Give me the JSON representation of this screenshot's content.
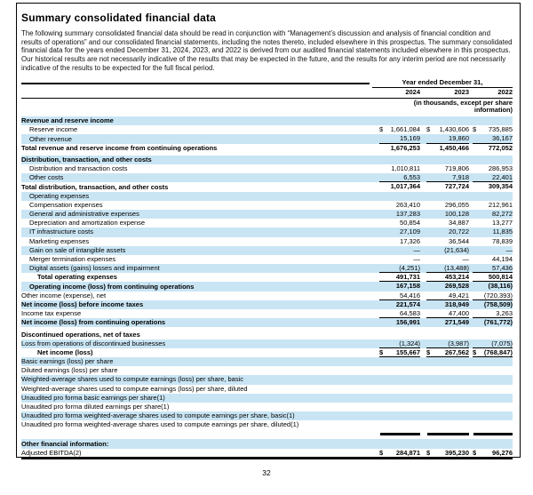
{
  "colors": {
    "row_shade": "#c9e5f4"
  },
  "page": {
    "number": "32"
  },
  "doc": {
    "title": "Summary consolidated financial data",
    "intro": "The following summary consolidated financial data should be read in conjunction with “Management’s discussion and analysis of financial condition and results of operations” and our consolidated financial statements, including the notes thereto, included elsewhere in this prospectus. The summary consolidated financial data for the years ended December 31, 2024, 2023, and 2022 is derived from our audited financial statements included elsewhere in this prospectus. Our historical results are not necessarily indicative of the results that may be expected in the future, and the results for any interim period are not necessarily indicative of the results to be expected for the full fiscal period."
  },
  "table": {
    "period_header": "Year ended December 31,",
    "years": [
      "2024",
      "2023",
      "2022"
    ],
    "units_note": "(in thousands, except per share information)",
    "rows": [
      {
        "label": "Revenue and reserve income",
        "bold": true,
        "indent": 0,
        "shaded": true,
        "values": [
          "",
          "",
          ""
        ]
      },
      {
        "label": "Reserve income",
        "indent": 1,
        "values": [
          "$1,661,084",
          "$ 1,430,606",
          "$ 735,885"
        ]
      },
      {
        "label": "Other revenue",
        "indent": 1,
        "shaded": true,
        "rule_below": true,
        "values": [
          "15,169",
          "19,860",
          "36,167"
        ]
      },
      {
        "label": "Total revenue and reserve income from continuing operations",
        "bold": true,
        "indent": 0,
        "values": [
          "1,676,253",
          "1,450,466",
          "772,052"
        ]
      },
      {
        "label": "Distribution, transaction, and other costs",
        "bold": true,
        "indent": 0,
        "shaded": true,
        "gap_before": true,
        "values": [
          "",
          "",
          ""
        ]
      },
      {
        "label": "Distribution and transaction costs",
        "indent": 1,
        "values": [
          "1,010,811",
          "719,806",
          "286,953"
        ]
      },
      {
        "label": "Other costs",
        "indent": 1,
        "shaded": true,
        "rule_below": true,
        "values": [
          "6,553",
          "7,918",
          "22,401"
        ]
      },
      {
        "label": "Total distribution, transaction, and other costs",
        "bold": true,
        "indent": 0,
        "values": [
          "1,017,364",
          "727,724",
          "309,354"
        ]
      },
      {
        "label": "Operating expenses",
        "indent": 1,
        "shaded": true,
        "values": [
          "",
          "",
          ""
        ]
      },
      {
        "label": "Compensation expenses",
        "indent": 1,
        "values": [
          "263,410",
          "296,055",
          "212,961"
        ]
      },
      {
        "label": "General and administrative expenses",
        "indent": 1,
        "shaded": true,
        "values": [
          "137,283",
          "100,128",
          "82,272"
        ]
      },
      {
        "label": "Depreciation and amortization expense",
        "indent": 1,
        "values": [
          "50,854",
          "34,887",
          "13,277"
        ]
      },
      {
        "label": "IT infrastructure costs",
        "indent": 1,
        "shaded": true,
        "values": [
          "27,109",
          "20,722",
          "11,835"
        ]
      },
      {
        "label": "Marketing expenses",
        "indent": 1,
        "values": [
          "17,326",
          "36,544",
          "78,839"
        ]
      },
      {
        "label": "Gain on sale of intangible assets",
        "indent": 1,
        "shaded": true,
        "values": [
          "—",
          "(21,634)",
          "—"
        ]
      },
      {
        "label": "Merger termination expenses",
        "indent": 1,
        "values": [
          "—",
          "—",
          "44,194"
        ]
      },
      {
        "label": "Digital assets (gains) losses and impairment",
        "indent": 1,
        "shaded": true,
        "rule_below": true,
        "values": [
          "(4,251)",
          "(13,488)",
          "57,436"
        ]
      },
      {
        "label": "Total operating expenses",
        "bold": true,
        "indent": 2,
        "rule_below": true,
        "values": [
          "491,731",
          "453,214",
          "500,814"
        ]
      },
      {
        "label": "Operating income (loss) from continuing operations",
        "bold": true,
        "indent": 1,
        "shaded": true,
        "values": [
          "167,158",
          "269,528",
          "(38,116)"
        ]
      },
      {
        "label": "Other income (expense), net",
        "indent": 0,
        "rule_below": true,
        "values": [
          "54,416",
          "49,421",
          "(720,393)"
        ]
      },
      {
        "label": "Net income (loss) before income taxes",
        "bold": true,
        "indent": 0,
        "shaded": true,
        "values": [
          "221,574",
          "318,949",
          "(758,509)"
        ]
      },
      {
        "label": "Income tax expense",
        "indent": 0,
        "rule_below": true,
        "values": [
          "64,583",
          "47,400",
          "3,263"
        ]
      },
      {
        "label": "Net income (loss) from continuing operations",
        "bold": true,
        "indent": 0,
        "shaded": true,
        "values": [
          "156,991",
          "271,549",
          "(761,772)"
        ]
      },
      {
        "label": "Discontinued operations, net of taxes",
        "bold": true,
        "indent": 0,
        "gap_before": true,
        "values": [
          "",
          "",
          ""
        ]
      },
      {
        "label": "Loss from operations of discontinued businesses",
        "indent": 0,
        "shaded": true,
        "rule_below": true,
        "values": [
          "(1,324)",
          "(3,987)",
          "(7,075)"
        ]
      },
      {
        "label": "Net income (loss)",
        "bold": true,
        "indent": 2,
        "rule_below": true,
        "values": [
          "$ 155,667",
          "$ 267,562",
          "$ (768,847)"
        ]
      },
      {
        "label": "Basic earnings (loss) per share",
        "indent": 0,
        "shaded": true,
        "values": [
          "",
          "",
          ""
        ]
      },
      {
        "label": "Diluted earnings (loss) per share",
        "indent": 0,
        "values": [
          "",
          "",
          ""
        ]
      },
      {
        "label": "Weighted-average shares used to compute earnings (loss) per share, basic",
        "indent": 0,
        "shaded": true,
        "values": [
          "",
          "",
          ""
        ]
      },
      {
        "label": "Weighted-average shares used to compute earnings (loss) per share, diluted",
        "indent": 0,
        "values": [
          "",
          "",
          ""
        ]
      },
      {
        "label": "Unaudited pro forma basic earnings per share(1)",
        "indent": 0,
        "shaded": true,
        "values": [
          "",
          "",
          ""
        ]
      },
      {
        "label": "Unaudited pro forma diluted earnings per share(1)",
        "indent": 0,
        "values": [
          "",
          "",
          ""
        ]
      },
      {
        "label": "Unaudited pro forma weighted-average shares used to compute earnings per share, basic(1)",
        "indent": 0,
        "shaded": true,
        "values": [
          "",
          "",
          ""
        ]
      },
      {
        "label": "Unaudited pro forma weighted-average shares used to compute earnings per share, diluted(1)",
        "indent": 0,
        "values": [
          "",
          "",
          ""
        ]
      },
      {
        "type": "segments",
        "label": "",
        "values": [
          "",
          "",
          ""
        ]
      },
      {
        "label": "Other financial information:",
        "bold": true,
        "indent": 0,
        "shaded": true,
        "values": [
          "",
          "",
          ""
        ]
      },
      {
        "label": "Adjusted EBITDA(2)",
        "indent": 0,
        "bold_values": true,
        "values": [
          "$ 284,871",
          "$ 395,230",
          "$ 96,276"
        ]
      }
    ]
  }
}
